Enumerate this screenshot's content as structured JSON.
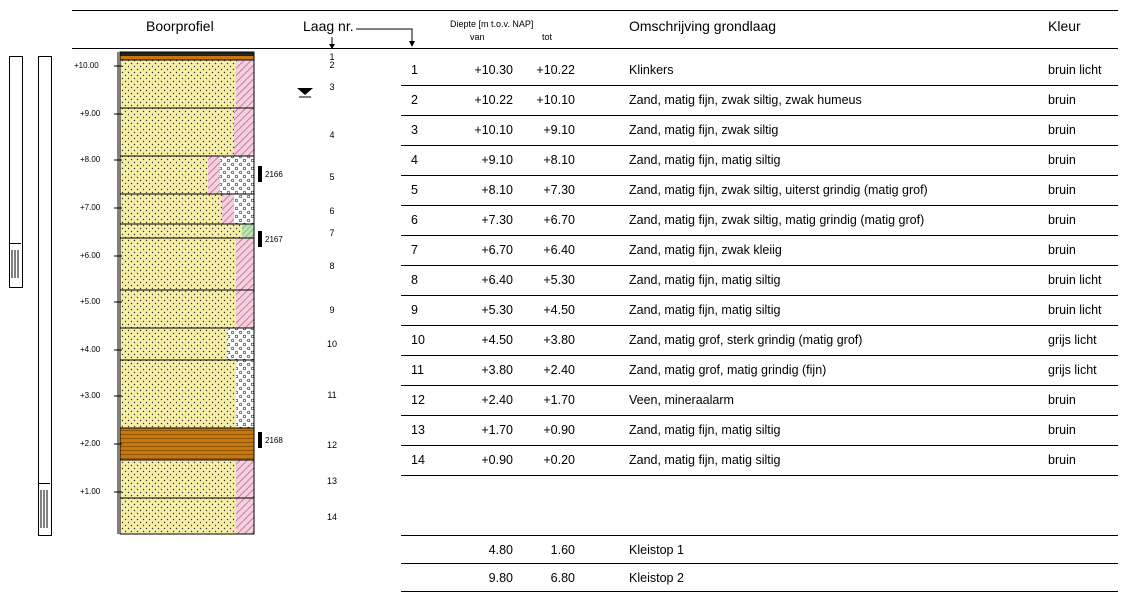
{
  "headers": {
    "boorprofiel": "Boorprofiel",
    "laag_nr": "Laag nr.",
    "diepte": "Diepte [m t.o.v. NAP]",
    "van": "van",
    "tot": "tot",
    "omschrijving": "Omschrijving grondlaag",
    "kleur": "Kleur"
  },
  "axis_ticks": [
    "+10.00",
    "+9.00",
    "+8.00",
    "+7.00",
    "+6.00",
    "+5.00",
    "+4.00",
    "+3.00",
    "+2.00",
    "+1.00"
  ],
  "sample_labels": [
    "2166",
    "2167",
    "2168"
  ],
  "profile_layer_numbers": [
    "1",
    "2",
    "3",
    "4",
    "5",
    "6",
    "7",
    "8",
    "9",
    "10",
    "11",
    "12",
    "13",
    "14"
  ],
  "layers": [
    {
      "nr": "1",
      "van": "+10.30",
      "tot": "+10.22",
      "omschrijving": "Klinkers",
      "kleur": "bruin licht"
    },
    {
      "nr": "2",
      "van": "+10.22",
      "tot": "+10.10",
      "omschrijving": "Zand, matig fijn, zwak siltig, zwak humeus",
      "kleur": "bruin"
    },
    {
      "nr": "3",
      "van": "+10.10",
      "tot": "+9.10",
      "omschrijving": "Zand, matig fijn, zwak siltig",
      "kleur": "bruin"
    },
    {
      "nr": "4",
      "van": "+9.10",
      "tot": "+8.10",
      "omschrijving": "Zand, matig fijn, matig siltig",
      "kleur": "bruin"
    },
    {
      "nr": "5",
      "van": "+8.10",
      "tot": "+7.30",
      "omschrijving": "Zand, matig fijn, zwak siltig, uiterst grindig (matig grof)",
      "kleur": "bruin"
    },
    {
      "nr": "6",
      "van": "+7.30",
      "tot": "+6.70",
      "omschrijving": "Zand, matig fijn, zwak siltig, matig grindig (matig grof)",
      "kleur": "bruin"
    },
    {
      "nr": "7",
      "van": "+6.70",
      "tot": "+6.40",
      "omschrijving": "Zand, matig fijn, zwak kleiig",
      "kleur": "bruin"
    },
    {
      "nr": "8",
      "van": "+6.40",
      "tot": "+5.30",
      "omschrijving": "Zand, matig fijn, matig siltig",
      "kleur": "bruin licht"
    },
    {
      "nr": "9",
      "van": "+5.30",
      "tot": "+4.50",
      "omschrijving": "Zand, matig fijn, matig siltig",
      "kleur": "bruin licht"
    },
    {
      "nr": "10",
      "van": "+4.50",
      "tot": "+3.80",
      "omschrijving": "Zand, matig grof, sterk grindig (matig grof)",
      "kleur": "grijs licht"
    },
    {
      "nr": "11",
      "van": "+3.80",
      "tot": "+2.40",
      "omschrijving": "Zand, matig grof, matig grindig (fijn)",
      "kleur": "grijs licht"
    },
    {
      "nr": "12",
      "van": "+2.40",
      "tot": "+1.70",
      "omschrijving": "Veen, mineraalarm",
      "kleur": "bruin"
    },
    {
      "nr": "13",
      "van": "+1.70",
      "tot": "+0.90",
      "omschrijving": "Zand, matig fijn, matig siltig",
      "kleur": "bruin"
    },
    {
      "nr": "14",
      "van": "+0.90",
      "tot": "+0.20",
      "omschrijving": "Zand, matig fijn, matig siltig",
      "kleur": "bruin"
    }
  ],
  "kleistop": [
    {
      "van": "4.80",
      "tot": "1.60",
      "label": "Kleistop 1"
    },
    {
      "van": "9.80",
      "tot": "6.80",
      "label": "Kleistop 2"
    }
  ],
  "colors": {
    "sand": "#f7eea8",
    "peat": "#c8780a",
    "silt_hatch": "#d4709a",
    "clay": "#a8d8a0",
    "gravel": "#ffffff"
  }
}
